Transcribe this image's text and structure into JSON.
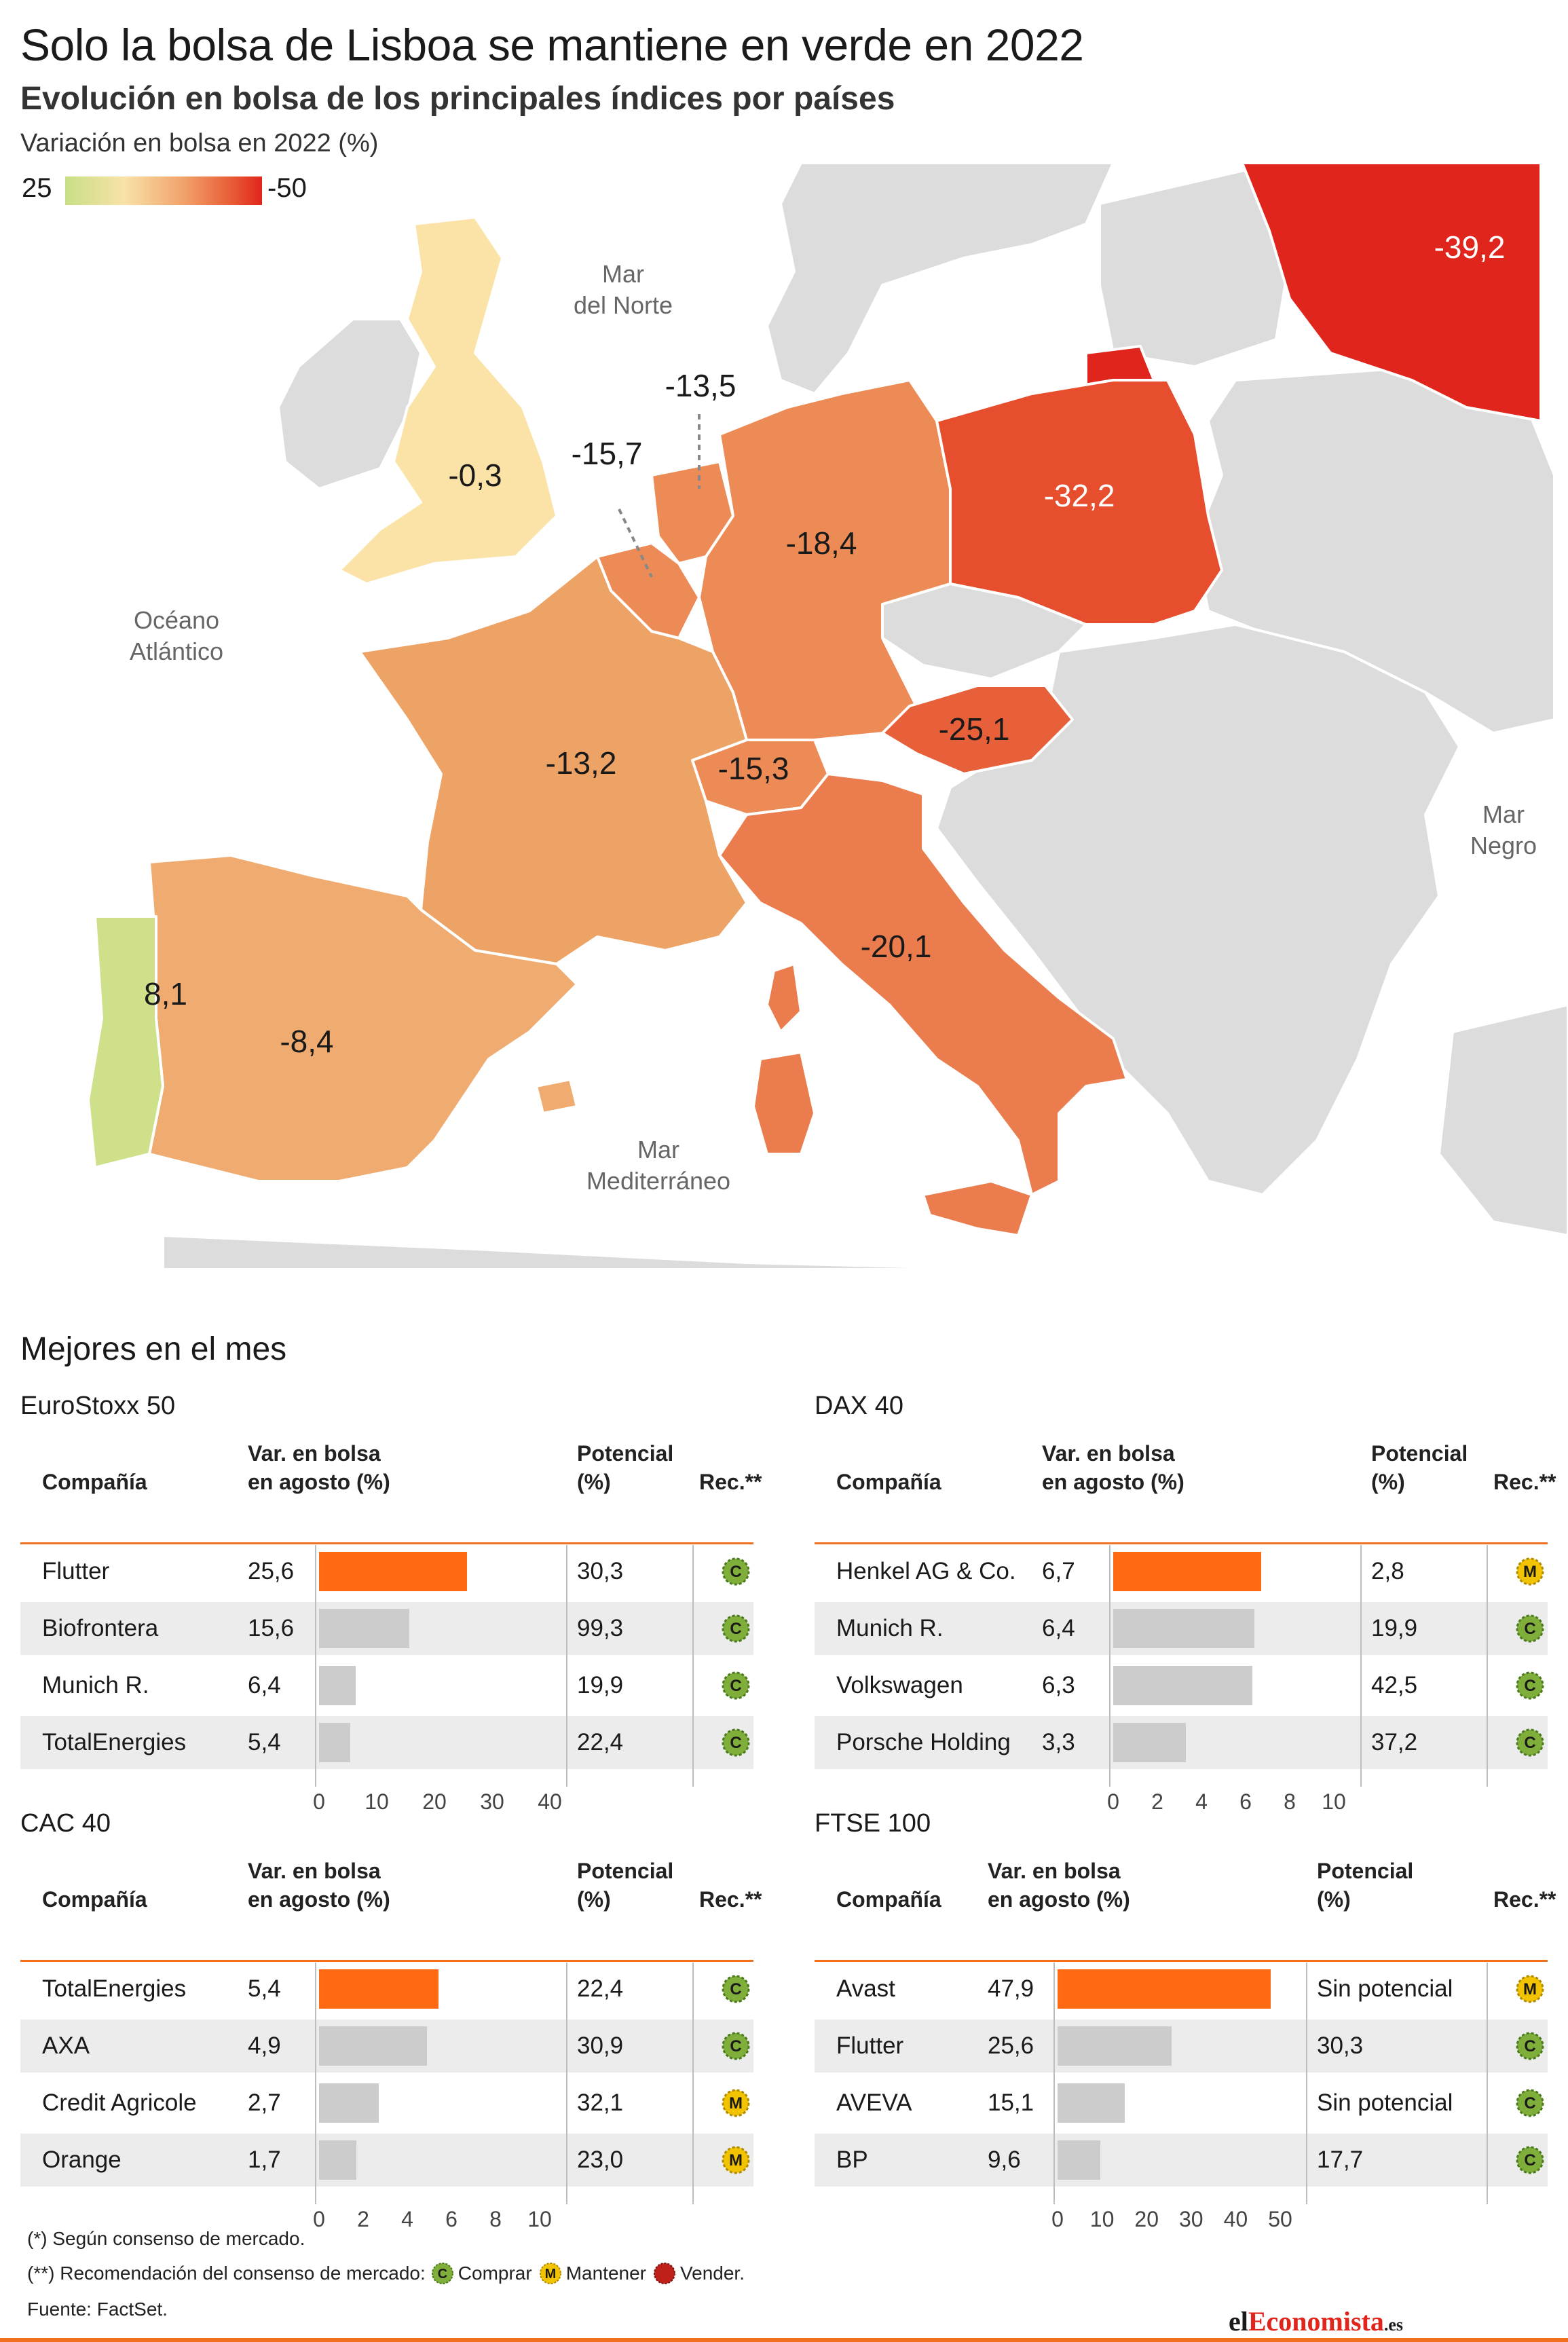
{
  "title": "Solo la bolsa de Lisboa se mantiene en verde en 2022",
  "subtitle": "Evolución en bolsa de los principales índices por países",
  "map": {
    "label": "Variación en bolsa en 2022 (%)",
    "legend": {
      "low": "25",
      "high": "-50",
      "low_color": "#c8df86",
      "high_color": "#e0261c"
    },
    "seas": {
      "norte_1": "Mar",
      "norte_2": "del Norte",
      "oceano_1": "Océano",
      "oceano_2": "Atlántico",
      "negro_1": "Mar",
      "negro_2": "Negro",
      "med_1": "Mar",
      "med_2": "Mediterráneo"
    },
    "countries": {
      "uk": "-0,3",
      "netherlands": "-13,5",
      "belgium": "-15,7",
      "germany": "-18,4",
      "poland": "-32,2",
      "russia": "-39,2",
      "austria": "-25,1",
      "switzerland": "-15,3",
      "france": "-13,2",
      "italy": "-20,1",
      "portugal": "8,1",
      "spain": "-8,4"
    },
    "colors": {
      "uk": "#fbe3a8",
      "netherlands": "#ec8b55",
      "belgium": "#ec8b55",
      "germany": "#ec8b55",
      "poland": "#e64e2d",
      "russia": "#e0261c",
      "austria": "#e8603a",
      "switzerland": "#ec8b55",
      "france": "#eea366",
      "italy": "#ea7c4d",
      "portugal": "#cfe08a",
      "spain": "#f0ac70",
      "grey": "#dcdcdc"
    }
  },
  "section_title": "Mejores en el mes",
  "tables": [
    {
      "name": "EuroStoxx 50",
      "headers": {
        "company": "Compañía",
        "var_1": "Var. en bolsa",
        "var_2": "en agosto (%)",
        "pot_1": "Potencial",
        "pot_2": "(%)",
        "rec": "Rec.**"
      },
      "axis": {
        "max": 40,
        "ticks": [
          "0",
          "10",
          "20",
          "30",
          "40"
        ]
      },
      "rows": [
        {
          "company": "Flutter",
          "var": "25,6",
          "value": 25.6,
          "potential": "30,3",
          "rec": "C",
          "highlight": true
        },
        {
          "company": "Biofrontera",
          "var": "15,6",
          "value": 15.6,
          "potential": "99,3",
          "rec": "C",
          "highlight": false
        },
        {
          "company": "Munich R.",
          "var": "6,4",
          "value": 6.4,
          "potential": "19,9",
          "rec": "C",
          "highlight": false
        },
        {
          "company": "TotalEnergies",
          "var": "5,4",
          "value": 5.4,
          "potential": "22,4",
          "rec": "C",
          "highlight": false
        }
      ]
    },
    {
      "name": "DAX 40",
      "headers": {
        "company": "Compañía",
        "var_1": "Var. en bolsa",
        "var_2": "en agosto (%)",
        "pot_1": "Potencial",
        "pot_2": "(%)",
        "rec": "Rec.**"
      },
      "axis": {
        "max": 10,
        "ticks": [
          "0",
          "2",
          "4",
          "6",
          "8",
          "10"
        ]
      },
      "rows": [
        {
          "company": "Henkel AG & Co.",
          "var": "6,7",
          "value": 6.7,
          "potential": "2,8",
          "rec": "M",
          "highlight": true
        },
        {
          "company": "Munich R.",
          "var": "6,4",
          "value": 6.4,
          "potential": "19,9",
          "rec": "C",
          "highlight": false
        },
        {
          "company": "Volkswagen",
          "var": "6,3",
          "value": 6.3,
          "potential": "42,5",
          "rec": "C",
          "highlight": false
        },
        {
          "company": "Porsche Holding",
          "var": "3,3",
          "value": 3.3,
          "potential": "37,2",
          "rec": "C",
          "highlight": false
        }
      ]
    },
    {
      "name": "CAC 40",
      "headers": {
        "company": "Compañía",
        "var_1": "Var. en bolsa",
        "var_2": "en agosto (%)",
        "pot_1": "Potencial",
        "pot_2": "(%)",
        "rec": "Rec.**"
      },
      "axis": {
        "max": 10,
        "ticks": [
          "0",
          "2",
          "4",
          "6",
          "8",
          "10"
        ]
      },
      "rows": [
        {
          "company": "TotalEnergies",
          "var": "5,4",
          "value": 5.4,
          "potential": "22,4",
          "rec": "C",
          "highlight": true
        },
        {
          "company": "AXA",
          "var": "4,9",
          "value": 4.9,
          "potential": "30,9",
          "rec": "C",
          "highlight": false
        },
        {
          "company": "Credit Agricole",
          "var": "2,7",
          "value": 2.7,
          "potential": "32,1",
          "rec": "M",
          "highlight": false
        },
        {
          "company": "Orange",
          "var": "1,7",
          "value": 1.7,
          "potential": "23,0",
          "rec": "M",
          "highlight": false
        }
      ]
    },
    {
      "name": "FTSE 100",
      "headers": {
        "company": "Compañía",
        "var_1": "Var. en bolsa",
        "var_2": "en agosto (%)",
        "pot_1": "Potencial",
        "pot_2": "(%)",
        "rec": "Rec.**"
      },
      "axis": {
        "max": 50,
        "ticks": [
          "0",
          "10",
          "20",
          "30",
          "40",
          "50"
        ]
      },
      "rows": [
        {
          "company": "Avast",
          "var": "47,9",
          "value": 47.9,
          "potential": "Sin potencial",
          "rec": "M",
          "highlight": true
        },
        {
          "company": "Flutter",
          "var": "25,6",
          "value": 25.6,
          "potential": "30,3",
          "rec": "C",
          "highlight": false
        },
        {
          "company": "AVEVA",
          "var": "15,1",
          "value": 15.1,
          "potential": "Sin potencial",
          "rec": "C",
          "highlight": false
        },
        {
          "company": "BP",
          "var": "9,6",
          "value": 9.6,
          "potential": "17,7",
          "rec": "C",
          "highlight": false
        }
      ]
    }
  ],
  "notes": {
    "n1": "(*) Según consenso de mercado.",
    "n2": "(**) Recomendación del consenso de mercado:",
    "buy": "Comprar",
    "hold": "Mantener",
    "sell": "Vender.",
    "source": "Fuente: FactSet."
  },
  "badge_colors": {
    "C": "#7fae3a",
    "M": "#f2c300",
    "V": "#c0201a"
  },
  "logo": {
    "part1": "el",
    "part2": "Economista",
    "part3": ".es"
  }
}
